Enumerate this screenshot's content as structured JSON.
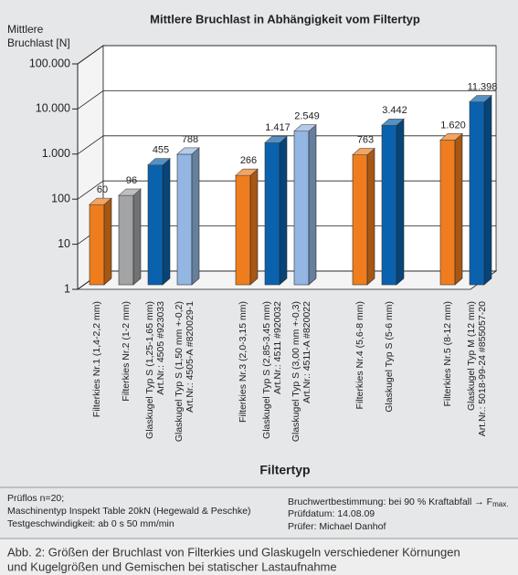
{
  "chart_data": {
    "type": "bar3d",
    "title": "Mittlere Bruchlast in Abhängigkeit vom Filtertyp",
    "y_label": [
      "Mittlere",
      "Bruchlast [N]"
    ],
    "x_label": "Filtertyp",
    "log_scale": true,
    "ylim": [
      1,
      100000
    ],
    "yticks": [
      1,
      10,
      100,
      {
        "value": 1000,
        "label": "1.000"
      },
      {
        "value": 10000,
        "label": "10.000"
      },
      {
        "value": 100000,
        "label": "100.000"
      }
    ],
    "grid": true,
    "categories": [
      "Filterkies Nr.1 (1,4-2,2 mm)",
      "Filterkies Nr.2 (1-2 mm)",
      "Glaskugel Typ S (1,25-1,65 mm)\nArt.Nr.: 4505 #923033",
      "Glaskugel Typ S (1,50 mm +-0,2)\nArt.Nr.: 4505-A #820029-1",
      null,
      "Filterkies Nr.3 (2,0-3,15 mm)",
      "Glaskugel Typ S (2,85-3,45 mm)\nArt.Nr.: 4511 #920032",
      "Glaskugel Typ S (3,00 mm +-0,3)\nArt.Nr.: 4511-A #820022",
      null,
      "Filterkies Nr.4 (5,6-8 mm)",
      "Glaskugel Typ S (5-6 mm)",
      null,
      "Filterkies Nr.5 (8-12 mm)",
      "Glaskugel Typ M (12 mm)\nArt.Nr.: 5018-99-24 #855057-20"
    ],
    "values": [
      60,
      96,
      455,
      788,
      null,
      266,
      1417,
      2549,
      null,
      763,
      3442,
      null,
      1620,
      11398
    ],
    "value_labels": [
      "60",
      "96",
      "455",
      "788",
      null,
      "266",
      "1.417",
      "2.549",
      null,
      "763",
      "3.442",
      null,
      "1.620",
      "11.398"
    ],
    "colors": [
      "#ef7d1d",
      "#a3a4a6",
      "#0a62ae",
      "#93b6e2",
      null,
      "#ef7d1d",
      "#0a62ae",
      "#93b6e2",
      null,
      "#ef7d1d",
      "#0a62ae",
      null,
      "#ef7d1d",
      "#0a62ae"
    ]
  },
  "notes_left": [
    "Prüflos n=20;",
    "Maschinentyp Inspekt Table 20kN (Hegewald & Peschke)",
    "Testgeschwindigkeit: ab 0 s 50 mm/min"
  ],
  "notes_right": {
    "line1": "Bruchwertbestimmung: bei 90 % Kraftabfall → F",
    "line1_sub": "max.",
    "line2": "Prüfdatum: 14.08.09",
    "line3": "Prüfer: Michael Danhof"
  },
  "caption": [
    "Abb. 2: Größen der Bruchlast von Filterkies und Glaskugeln verschiedener Körnungen",
    "und Kugelgrößen und Gemischen bei statischer Lastaufnahme"
  ]
}
